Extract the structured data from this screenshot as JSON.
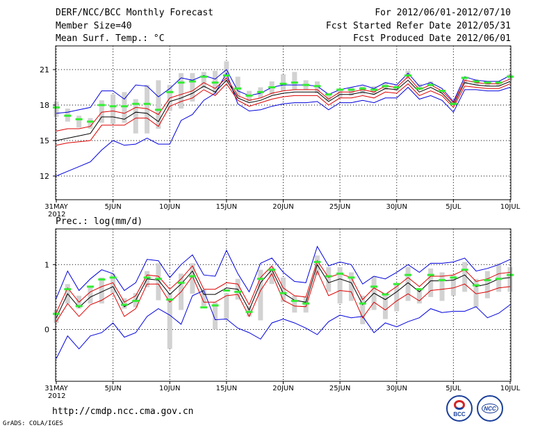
{
  "header": {
    "title": "DERF/NCC/BCC Monthly Forecast",
    "member_size": "Member Size=40",
    "variable": "Mean Surf. Temp.: °C",
    "period": "For 2012/06/01-2012/07/10",
    "start_date": "Fcst Started Refer Date 2012/05/31",
    "produced_date": "Fcst Produced Date 2012/06/01"
  },
  "footer": {
    "url": "http://cmdp.ncc.cma.gov.cn",
    "grads": "GrADS: COLA/IGES",
    "logo_left": "BCC",
    "logo_right": "NCC"
  },
  "colors": {
    "outer_envelope": "#0000dd",
    "inner_envelope": "#dd0000",
    "mean": "#000000",
    "box": "#d2d2d2",
    "marker": "#33ee33"
  },
  "chart_data": [
    {
      "type": "line",
      "title": "Mean Surf. Temp.: °C",
      "x_ticks": [
        "31MAY\n2012",
        "5JUN",
        "10JUN",
        "15JUN",
        "20JUN",
        "25JUN",
        "30JUN",
        "5JUL",
        "10JUL"
      ],
      "x_range": [
        0,
        40
      ],
      "ylim": [
        10,
        23
      ],
      "yticks": [
        "12",
        "15",
        "18",
        "21"
      ],
      "grid": true,
      "series": [
        {
          "name": "max",
          "values": [
            12.0,
            12.4,
            12.8,
            13.2,
            14.2,
            15.0,
            14.6,
            14.7,
            15.2,
            14.7,
            14.7,
            16.7,
            17.2,
            18.4,
            19.0,
            20.7,
            18.1,
            17.5,
            17.6,
            17.9,
            18.1,
            18.2,
            18.2,
            18.3,
            17.6,
            18.2,
            18.2,
            18.4,
            18.2,
            18.6,
            18.6,
            19.5,
            18.5,
            18.8,
            18.4,
            17.4,
            19.3,
            19.3,
            19.2,
            19.2,
            19.5
          ]
        },
        {
          "name": "upper",
          "values": [
            14.6,
            14.8,
            14.9,
            15.0,
            16.3,
            16.3,
            16.3,
            16.9,
            16.9,
            16.2,
            17.9,
            18.3,
            18.6,
            19.3,
            18.8,
            19.8,
            18.4,
            17.9,
            18.2,
            18.5,
            18.7,
            18.8,
            18.8,
            18.8,
            18.0,
            18.6,
            18.6,
            18.8,
            18.6,
            19.1,
            19.0,
            19.8,
            18.8,
            19.2,
            18.8,
            17.8,
            19.6,
            19.5,
            19.4,
            19.4,
            19.8
          ]
        },
        {
          "name": "mean",
          "values": [
            15.0,
            15.2,
            15.4,
            15.6,
            17.0,
            17.0,
            16.8,
            17.4,
            17.3,
            16.6,
            18.3,
            18.6,
            19.0,
            19.6,
            19.1,
            20.1,
            18.6,
            18.2,
            18.4,
            18.8,
            19.0,
            19.1,
            19.1,
            19.1,
            18.3,
            18.9,
            18.9,
            19.1,
            18.9,
            19.4,
            19.3,
            20.1,
            19.1,
            19.5,
            19.0,
            18.0,
            19.9,
            19.7,
            19.6,
            19.6,
            20.0
          ]
        },
        {
          "name": "lower",
          "values": [
            15.8,
            16.0,
            16.0,
            16.2,
            17.4,
            17.5,
            17.3,
            17.8,
            17.7,
            17.2,
            18.6,
            18.9,
            19.2,
            19.9,
            19.4,
            20.3,
            18.8,
            18.4,
            18.6,
            19.0,
            19.2,
            19.3,
            19.3,
            19.3,
            18.5,
            19.1,
            19.1,
            19.3,
            19.1,
            19.6,
            19.5,
            20.4,
            19.3,
            19.7,
            19.2,
            18.2,
            20.1,
            19.9,
            19.8,
            19.8,
            20.2
          ]
        },
        {
          "name": "min",
          "values": [
            17.3,
            17.4,
            17.6,
            17.8,
            19.2,
            19.2,
            18.5,
            19.7,
            19.6,
            18.7,
            19.4,
            20.3,
            20.1,
            20.5,
            20.2,
            21.0,
            19.2,
            18.8,
            19.0,
            19.5,
            19.7,
            19.7,
            19.7,
            19.6,
            18.9,
            19.3,
            19.5,
            19.7,
            19.4,
            19.9,
            19.7,
            20.7,
            19.6,
            19.9,
            19.4,
            18.3,
            20.4,
            20.1,
            20.0,
            20.0,
            20.5
          ]
        }
      ],
      "boxes": [
        {
          "lo": 17.0,
          "hi": 18.3
        },
        {
          "lo": 16.6,
          "hi": 17.7
        },
        {
          "lo": 16.1,
          "hi": 17.1
        },
        {
          "lo": 16.0,
          "hi": 16.9
        },
        {
          "lo": 16.5,
          "hi": 18.4
        },
        {
          "lo": 16.4,
          "hi": 18.9
        },
        {
          "lo": 16.5,
          "hi": 19.1
        },
        {
          "lo": 15.6,
          "hi": 18.5
        },
        {
          "lo": 15.6,
          "hi": 19.7
        },
        {
          "lo": 16.0,
          "hi": 20.1
        },
        {
          "lo": 17.5,
          "hi": 19.7
        },
        {
          "lo": 17.7,
          "hi": 20.7
        },
        {
          "lo": 18.3,
          "hi": 20.7
        },
        {
          "lo": 19.4,
          "hi": 20.8
        },
        {
          "lo": 18.9,
          "hi": 20.9
        },
        {
          "lo": 19.9,
          "hi": 21.7
        },
        {
          "lo": 18.6,
          "hi": 20.4
        },
        {
          "lo": 18.3,
          "hi": 19.2
        },
        {
          "lo": 18.6,
          "hi": 19.5
        },
        {
          "lo": 18.9,
          "hi": 20.0
        },
        {
          "lo": 19.2,
          "hi": 20.6
        },
        {
          "lo": 19.3,
          "hi": 20.8
        },
        {
          "lo": 19.3,
          "hi": 20.1
        },
        {
          "lo": 19.0,
          "hi": 20.0
        },
        {
          "lo": 18.4,
          "hi": 19.0
        },
        {
          "lo": 18.6,
          "hi": 19.4
        },
        {
          "lo": 18.8,
          "hi": 19.5
        },
        {
          "lo": 18.9,
          "hi": 19.6
        },
        {
          "lo": 18.9,
          "hi": 19.6
        },
        {
          "lo": 19.3,
          "hi": 19.9
        },
        {
          "lo": 19.2,
          "hi": 19.7
        },
        {
          "lo": 20.2,
          "hi": 20.9
        },
        {
          "lo": 19.3,
          "hi": 19.8
        },
        {
          "lo": 19.6,
          "hi": 20.0
        },
        {
          "lo": 19.0,
          "hi": 19.3
        },
        {
          "lo": 18.0,
          "hi": 18.3
        },
        {
          "lo": 19.8,
          "hi": 20.4
        },
        {
          "lo": 19.7,
          "hi": 20.2
        },
        {
          "lo": 19.6,
          "hi": 20.0
        },
        {
          "lo": 19.6,
          "hi": 20.0
        },
        {
          "lo": 20.1,
          "hi": 20.6
        }
      ],
      "observed": [
        17.8,
        17.1,
        16.8,
        16.6,
        18.0,
        17.9,
        17.9,
        18.1,
        18.1,
        17.6,
        19.1,
        19.9,
        20.0,
        20.4,
        19.9,
        20.5,
        19.4,
        18.8,
        19.1,
        19.5,
        19.8,
        19.9,
        19.7,
        19.6,
        18.9,
        19.3,
        19.3,
        19.4,
        19.3,
        19.6,
        19.5,
        20.5,
        19.4,
        19.7,
        19.2,
        18.1,
        20.3,
        20.0,
        19.9,
        19.9,
        20.4
      ]
    },
    {
      "type": "line",
      "title": "Prec.: log(mm/d)",
      "x_ticks": [
        "31MAY\n2012",
        "5JUN",
        "10JUN",
        "15JUN",
        "20JUN",
        "25JUN",
        "30JUN",
        "5JUL",
        "10JUL"
      ],
      "x_range": [
        0,
        40
      ],
      "ylim": [
        -0.8,
        1.55
      ],
      "yticks": [
        "0",
        "1"
      ],
      "grid": true,
      "series": [
        {
          "name": "min",
          "values": [
            -0.45,
            -0.1,
            -0.3,
            -0.1,
            -0.05,
            0.1,
            -0.12,
            -0.05,
            0.2,
            0.32,
            0.22,
            0.08,
            0.52,
            0.6,
            0.15,
            0.16,
            0.02,
            -0.05,
            -0.15,
            0.1,
            0.16,
            0.1,
            0.02,
            -0.08,
            0.12,
            0.22,
            0.18,
            0.2,
            -0.05,
            0.1,
            0.04,
            0.12,
            0.18,
            0.32,
            0.26,
            0.28,
            0.28,
            0.35,
            0.18,
            0.25,
            0.38
          ]
        },
        {
          "name": "lower",
          "values": [
            0.12,
            0.4,
            0.2,
            0.38,
            0.45,
            0.56,
            0.2,
            0.32,
            0.7,
            0.7,
            0.42,
            0.58,
            0.82,
            0.42,
            0.42,
            0.52,
            0.54,
            0.2,
            0.6,
            0.86,
            0.45,
            0.36,
            0.35,
            0.9,
            0.52,
            0.6,
            0.58,
            0.18,
            0.42,
            0.3,
            0.44,
            0.55,
            0.44,
            0.6,
            0.62,
            0.64,
            0.7,
            0.55,
            0.58,
            0.64,
            0.66
          ]
        },
        {
          "name": "mean",
          "values": [
            0.18,
            0.55,
            0.34,
            0.5,
            0.58,
            0.66,
            0.35,
            0.45,
            0.78,
            0.76,
            0.54,
            0.7,
            0.9,
            0.54,
            0.54,
            0.64,
            0.62,
            0.3,
            0.72,
            0.92,
            0.56,
            0.45,
            0.42,
            1.0,
            0.72,
            0.78,
            0.72,
            0.38,
            0.56,
            0.46,
            0.58,
            0.72,
            0.58,
            0.75,
            0.75,
            0.76,
            0.84,
            0.66,
            0.7,
            0.78,
            0.8
          ]
        },
        {
          "name": "upper",
          "values": [
            0.26,
            0.64,
            0.42,
            0.58,
            0.66,
            0.72,
            0.42,
            0.52,
            0.84,
            0.82,
            0.62,
            0.78,
            0.98,
            0.62,
            0.62,
            0.72,
            0.7,
            0.38,
            0.8,
            0.98,
            0.64,
            0.52,
            0.5,
            1.06,
            0.8,
            0.86,
            0.8,
            0.46,
            0.64,
            0.54,
            0.66,
            0.8,
            0.66,
            0.82,
            0.82,
            0.84,
            0.92,
            0.74,
            0.78,
            0.86,
            0.88
          ]
        },
        {
          "name": "max",
          "values": [
            0.48,
            0.9,
            0.6,
            0.78,
            0.92,
            0.86,
            0.6,
            0.72,
            1.08,
            1.06,
            0.8,
            1.0,
            1.15,
            0.84,
            0.82,
            1.22,
            0.86,
            0.58,
            1.02,
            1.1,
            0.88,
            0.74,
            0.72,
            1.28,
            0.98,
            1.04,
            1.0,
            0.7,
            0.82,
            0.78,
            0.88,
            1.0,
            0.88,
            1.02,
            1.02,
            1.04,
            1.1,
            0.9,
            0.94,
            1.0,
            1.08
          ]
        }
      ],
      "boxes": [
        {
          "lo": 0.1,
          "hi": 0.3
        },
        {
          "lo": 0.4,
          "hi": 0.7
        },
        {
          "lo": 0.32,
          "hi": 0.52
        },
        {
          "lo": 0.4,
          "hi": 0.66
        },
        {
          "lo": 0.4,
          "hi": 0.8
        },
        {
          "lo": 0.56,
          "hi": 0.86
        },
        {
          "lo": 0.32,
          "hi": 0.48
        },
        {
          "lo": 0.34,
          "hi": 0.56
        },
        {
          "lo": 0.65,
          "hi": 0.9
        },
        {
          "lo": 0.45,
          "hi": 1.02
        },
        {
          "lo": -0.3,
          "hi": 0.56
        },
        {
          "lo": 0.3,
          "hi": 0.86
        },
        {
          "lo": 0.55,
          "hi": 1.02
        },
        {
          "lo": 0.36,
          "hi": 0.62
        },
        {
          "lo": 0.0,
          "hi": 0.42
        },
        {
          "lo": 0.15,
          "hi": 0.56
        },
        {
          "lo": 0.46,
          "hi": 0.78
        },
        {
          "lo": 0.2,
          "hi": 0.36
        },
        {
          "lo": 0.14,
          "hi": 0.92
        },
        {
          "lo": 0.7,
          "hi": 0.96
        },
        {
          "lo": 0.42,
          "hi": 0.8
        },
        {
          "lo": 0.26,
          "hi": 0.52
        },
        {
          "lo": 0.26,
          "hi": 0.5
        },
        {
          "lo": 0.84,
          "hi": 1.14
        },
        {
          "lo": 0.58,
          "hi": 0.96
        },
        {
          "lo": 0.4,
          "hi": 0.96
        },
        {
          "lo": 0.44,
          "hi": 0.88
        },
        {
          "lo": 0.08,
          "hi": 0.52
        },
        {
          "lo": 0.3,
          "hi": 0.82
        },
        {
          "lo": 0.16,
          "hi": 0.56
        },
        {
          "lo": 0.28,
          "hi": 0.7
        },
        {
          "lo": 0.44,
          "hi": 0.96
        },
        {
          "lo": 0.4,
          "hi": 0.62
        },
        {
          "lo": 0.5,
          "hi": 0.94
        },
        {
          "lo": 0.44,
          "hi": 0.88
        },
        {
          "lo": 0.52,
          "hi": 0.84
        },
        {
          "lo": 0.58,
          "hi": 1.04
        },
        {
          "lo": 0.34,
          "hi": 0.78
        },
        {
          "lo": 0.48,
          "hi": 0.9
        },
        {
          "lo": 0.58,
          "hi": 1.02
        },
        {
          "lo": 0.58,
          "hi": 0.96
        }
      ],
      "observed": [
        0.24,
        0.62,
        0.36,
        0.66,
        0.77,
        0.8,
        0.38,
        0.44,
        0.8,
        0.78,
        0.46,
        0.72,
        0.82,
        0.34,
        0.37,
        0.6,
        0.58,
        0.27,
        0.78,
        0.92,
        0.56,
        0.44,
        0.4,
        1.04,
        0.82,
        0.86,
        0.8,
        0.4,
        0.66,
        0.54,
        0.7,
        0.84,
        0.62,
        0.84,
        0.76,
        0.8,
        0.92,
        0.68,
        0.76,
        0.78,
        0.84
      ]
    }
  ]
}
